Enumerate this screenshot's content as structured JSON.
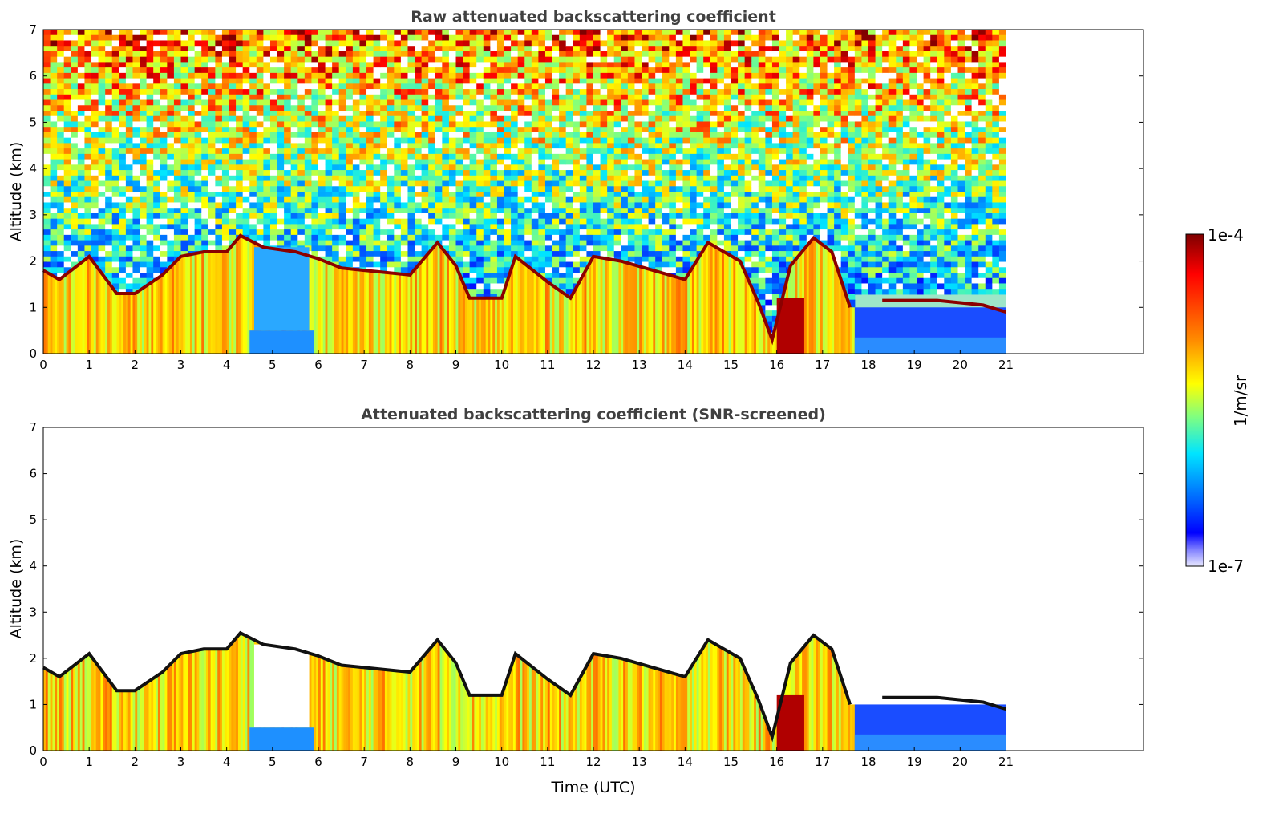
{
  "chart_data": [
    {
      "type": "heatmap",
      "title": "Raw attenuated backscattering coefficient",
      "xlabel": "",
      "ylabel": "Altitude (km)",
      "xlim": [
        0,
        24
      ],
      "ylim": [
        0,
        7
      ],
      "x_ticks": [
        "0",
        "1",
        "2",
        "3",
        "4",
        "5",
        "6",
        "7",
        "8",
        "9",
        "10",
        "11",
        "12",
        "13",
        "14",
        "15",
        "16",
        "17",
        "18",
        "19",
        "20",
        "21"
      ],
      "y_ticks": [
        "0",
        "1",
        "2",
        "3",
        "4",
        "5",
        "6",
        "7"
      ],
      "data_extent_hours": [
        0,
        21
      ],
      "colorscale": "jet",
      "color_range": [
        "1e-7",
        "1e-4"
      ],
      "noise_top": true,
      "cloud_base_top_km": [
        [
          0,
          1.8
        ],
        [
          0.35,
          1.6
        ],
        [
          1.0,
          2.1
        ],
        [
          1.6,
          1.3
        ],
        [
          2.0,
          1.3
        ],
        [
          2.6,
          1.7
        ],
        [
          3.0,
          2.1
        ],
        [
          3.5,
          2.2
        ],
        [
          4.0,
          2.2
        ],
        [
          4.3,
          2.55
        ],
        [
          4.8,
          2.3
        ],
        [
          5.5,
          2.2
        ],
        [
          6.0,
          2.05
        ],
        [
          6.5,
          1.85
        ],
        [
          7.0,
          1.8
        ],
        [
          8.0,
          1.7
        ],
        [
          8.6,
          2.4
        ],
        [
          9.0,
          1.9
        ],
        [
          9.3,
          1.2
        ],
        [
          10.0,
          1.2
        ],
        [
          10.3,
          2.1
        ],
        [
          11.0,
          1.55
        ],
        [
          11.5,
          1.2
        ],
        [
          12.0,
          2.1
        ],
        [
          12.6,
          2.0
        ],
        [
          13.3,
          1.8
        ],
        [
          14.0,
          1.6
        ],
        [
          14.5,
          2.4
        ],
        [
          15.2,
          2.0
        ],
        [
          15.6,
          1.1
        ],
        [
          15.9,
          0.3
        ],
        [
          16.3,
          1.9
        ],
        [
          16.8,
          2.5
        ],
        [
          17.2,
          2.2
        ],
        [
          17.6,
          1.0
        ]
      ],
      "low_layer_km": [
        [
          18.3,
          1.15
        ],
        [
          19.5,
          1.15
        ],
        [
          20.5,
          1.05
        ],
        [
          21.0,
          0.9
        ]
      ]
    },
    {
      "type": "heatmap",
      "title": "Attenuated backscattering coefficient (SNR-screened)",
      "xlabel": "Time (UTC)",
      "ylabel": "Altitude (km)",
      "xlim": [
        0,
        24
      ],
      "ylim": [
        0,
        7
      ],
      "x_ticks": [
        "0",
        "1",
        "2",
        "3",
        "4",
        "5",
        "6",
        "7",
        "8",
        "9",
        "10",
        "11",
        "12",
        "13",
        "14",
        "15",
        "16",
        "17",
        "18",
        "19",
        "20",
        "21"
      ],
      "y_ticks": [
        "0",
        "1",
        "2",
        "3",
        "4",
        "5",
        "6",
        "7"
      ],
      "data_extent_hours": [
        0,
        21
      ],
      "colorscale": "jet",
      "color_range": [
        "1e-7",
        "1e-4"
      ],
      "noise_top": false
    }
  ],
  "colorbar": {
    "max_label": "1e-4",
    "min_label": "1e-7",
    "unit_label": "1/m/sr",
    "colors": [
      "#7f0000",
      "#ff0000",
      "#ff8000",
      "#ffff00",
      "#80ff80",
      "#00ffff",
      "#0080ff",
      "#0000ff",
      "#00008f"
    ]
  }
}
